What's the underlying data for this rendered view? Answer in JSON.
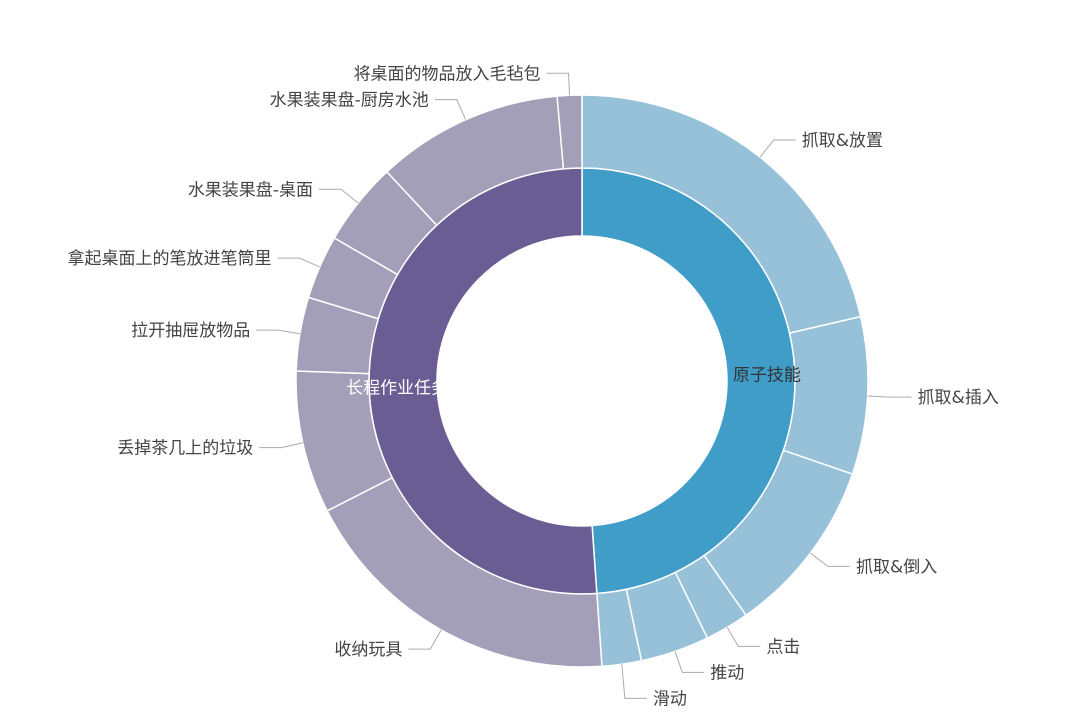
{
  "chart_data": {
    "type": "sunburst",
    "title": "",
    "colors": {
      "原子技能": {
        "inner": "#3f9dc8",
        "outer": "#97c0d9",
        "label": "#333333"
      },
      "长程作业任务": {
        "inner": "#6a5d94",
        "outer": "#a49fb9",
        "label": "#ffffff"
      },
      "leader_line": "#aaaaaa"
    },
    "series": [
      {
        "name": "原子技能",
        "children": [
          {
            "name": "抓取&放置",
            "value": 77
          },
          {
            "name": "抓取&插入",
            "value": 32
          },
          {
            "name": "抓取&倒入",
            "value": 36
          },
          {
            "name": "点击",
            "value": 9
          },
          {
            "name": "推动",
            "value": 14
          },
          {
            "name": "滑动",
            "value": 8
          }
        ]
      },
      {
        "name": "长程作业任务",
        "children": [
          {
            "name": "收纳玩具",
            "value": 67
          },
          {
            "name": "丢掉茶几上的垃圾",
            "value": 29
          },
          {
            "name": "拉开抽屉放物品",
            "value": 15
          },
          {
            "name": "拿起桌面上的笔放进笔筒里",
            "value": 13
          },
          {
            "name": "水果装果盘-桌面",
            "value": 17
          },
          {
            "name": "水果装果盘-厨房水池",
            "value": 38
          },
          {
            "name": "将桌面的物品放入毛毡包",
            "value": 5
          }
        ]
      }
    ]
  }
}
